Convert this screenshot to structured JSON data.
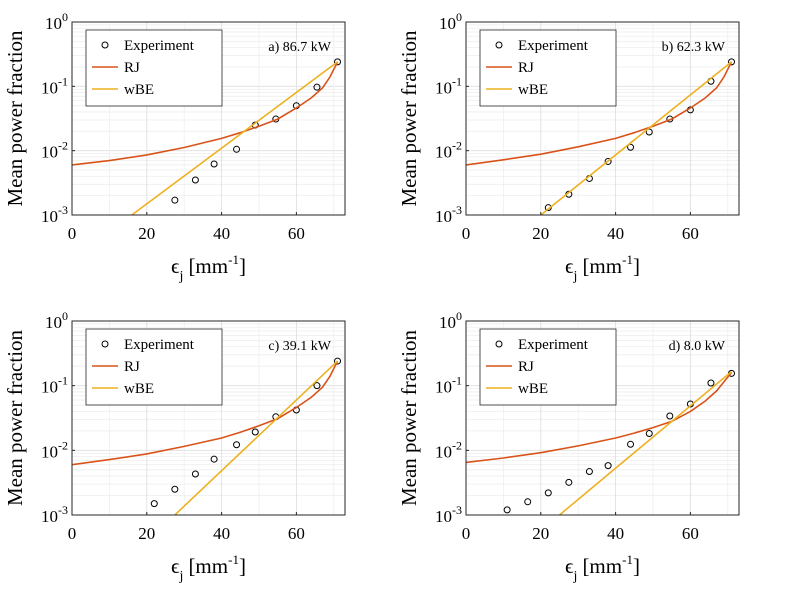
{
  "chart_data": [
    {
      "type": "line",
      "title": "a) 86.7 kW",
      "xlabel_symbol": "ϵ",
      "xlabel_sub": "j",
      "xlabel_unit": "[mm",
      "xlabel_unit_exp": "-1",
      "xlabel_unit_close": "]",
      "ylabel": "Mean power fraction",
      "xlim": [
        0,
        73
      ],
      "ylim": [
        0.001,
        1
      ],
      "yscale": "log",
      "grid": true,
      "legend_position": "top-left",
      "x_ticks": [
        "0",
        "20",
        "40",
        "60"
      ],
      "y_ticks": [
        {
          "base": "10",
          "exp": "0"
        },
        {
          "base": "10",
          "exp": "-1"
        },
        {
          "base": "10",
          "exp": "-2"
        },
        {
          "base": "10",
          "exp": "-3"
        }
      ],
      "series": [
        {
          "name": "Experiment",
          "kind": "scatter",
          "color": "#000000",
          "x": [
            27.5,
            33,
            38,
            44,
            49,
            54.5,
            60,
            65.5,
            71
          ],
          "y": [
            0.0017,
            0.0035,
            0.0062,
            0.0105,
            0.025,
            0.031,
            0.05,
            0.097,
            0.24
          ]
        },
        {
          "name": "RJ",
          "kind": "line",
          "color": "#D95319",
          "x": [
            0,
            10,
            20,
            30,
            40,
            45,
            50,
            55,
            60,
            64,
            67,
            69,
            71
          ],
          "y": [
            0.006,
            0.007,
            0.0086,
            0.0112,
            0.0155,
            0.019,
            0.024,
            0.031,
            0.046,
            0.066,
            0.095,
            0.14,
            0.24
          ]
        },
        {
          "name": "wBE",
          "kind": "line",
          "color": "#EDB120",
          "x": [
            16,
            71
          ],
          "y": [
            0.001,
            0.24
          ]
        }
      ]
    },
    {
      "type": "line",
      "title": "b) 62.3 kW",
      "xlabel_symbol": "ϵ",
      "xlabel_sub": "j",
      "xlabel_unit": "[mm",
      "xlabel_unit_exp": "-1",
      "xlabel_unit_close": "]",
      "ylabel": "Mean power fraction",
      "xlim": [
        0,
        73
      ],
      "ylim": [
        0.001,
        1
      ],
      "yscale": "log",
      "grid": true,
      "legend_position": "top-left",
      "x_ticks": [
        "0",
        "20",
        "40",
        "60"
      ],
      "y_ticks": [
        {
          "base": "10",
          "exp": "0"
        },
        {
          "base": "10",
          "exp": "-1"
        },
        {
          "base": "10",
          "exp": "-2"
        },
        {
          "base": "10",
          "exp": "-3"
        }
      ],
      "series": [
        {
          "name": "Experiment",
          "kind": "scatter",
          "color": "#000000",
          "x": [
            22,
            27.5,
            33,
            38,
            44,
            49,
            54.5,
            60,
            65.5,
            71
          ],
          "y": [
            0.0013,
            0.0021,
            0.0037,
            0.0068,
            0.0113,
            0.0195,
            0.031,
            0.043,
            0.12,
            0.24
          ]
        },
        {
          "name": "RJ",
          "kind": "line",
          "color": "#D95319",
          "x": [
            0,
            10,
            20,
            30,
            40,
            45,
            50,
            55,
            60,
            64,
            67,
            69,
            71
          ],
          "y": [
            0.006,
            0.0072,
            0.0088,
            0.0115,
            0.0155,
            0.019,
            0.024,
            0.031,
            0.046,
            0.066,
            0.095,
            0.14,
            0.24
          ]
        },
        {
          "name": "wBE",
          "kind": "line",
          "color": "#EDB120",
          "x": [
            20,
            71
          ],
          "y": [
            0.001,
            0.24
          ]
        }
      ]
    },
    {
      "type": "line",
      "title": "c) 39.1 kW",
      "xlabel_symbol": "ϵ",
      "xlabel_sub": "j",
      "xlabel_unit": "[mm",
      "xlabel_unit_exp": "-1",
      "xlabel_unit_close": "]",
      "ylabel": "Mean power fraction",
      "xlim": [
        0,
        73
      ],
      "ylim": [
        0.001,
        1
      ],
      "yscale": "log",
      "grid": true,
      "legend_position": "top-left",
      "x_ticks": [
        "0",
        "20",
        "40",
        "60"
      ],
      "y_ticks": [
        {
          "base": "10",
          "exp": "0"
        },
        {
          "base": "10",
          "exp": "-1"
        },
        {
          "base": "10",
          "exp": "-2"
        },
        {
          "base": "10",
          "exp": "-3"
        }
      ],
      "series": [
        {
          "name": "Experiment",
          "kind": "scatter",
          "color": "#000000",
          "x": [
            22,
            27.5,
            33,
            38,
            44,
            49,
            54.5,
            60,
            65.5,
            71
          ],
          "y": [
            0.0015,
            0.0025,
            0.0043,
            0.0073,
            0.0122,
            0.0192,
            0.033,
            0.042,
            0.1,
            0.24
          ]
        },
        {
          "name": "RJ",
          "kind": "line",
          "color": "#D95319",
          "x": [
            0,
            10,
            20,
            30,
            40,
            45,
            50,
            55,
            60,
            64,
            67,
            69,
            71
          ],
          "y": [
            0.006,
            0.0072,
            0.0088,
            0.0115,
            0.0155,
            0.019,
            0.024,
            0.031,
            0.046,
            0.066,
            0.095,
            0.14,
            0.24
          ]
        },
        {
          "name": "wBE",
          "kind": "line",
          "color": "#EDB120",
          "x": [
            27.5,
            71
          ],
          "y": [
            0.001,
            0.24
          ]
        }
      ]
    },
    {
      "type": "line",
      "title": "d) 8.0 kW",
      "xlabel_symbol": "ϵ",
      "xlabel_sub": "j",
      "xlabel_unit": "[mm",
      "xlabel_unit_exp": "-1",
      "xlabel_unit_close": "]",
      "ylabel": "Mean power fraction",
      "xlim": [
        0,
        73
      ],
      "ylim": [
        0.001,
        1
      ],
      "yscale": "log",
      "grid": true,
      "legend_position": "top-left",
      "x_ticks": [
        "0",
        "20",
        "40",
        "60"
      ],
      "y_ticks": [
        {
          "base": "10",
          "exp": "0"
        },
        {
          "base": "10",
          "exp": "-1"
        },
        {
          "base": "10",
          "exp": "-2"
        },
        {
          "base": "10",
          "exp": "-3"
        }
      ],
      "series": [
        {
          "name": "Experiment",
          "kind": "scatter",
          "color": "#000000",
          "x": [
            11,
            16.5,
            22,
            27.5,
            33,
            38,
            44,
            49,
            54.5,
            60,
            65.5,
            71
          ],
          "y": [
            0.0012,
            0.0016,
            0.0022,
            0.0032,
            0.0047,
            0.0058,
            0.0124,
            0.0182,
            0.034,
            0.052,
            0.11,
            0.155
          ]
        },
        {
          "name": "RJ",
          "kind": "line",
          "color": "#D95319",
          "x": [
            0,
            10,
            20,
            30,
            40,
            45,
            50,
            55,
            60,
            64,
            67,
            69,
            71
          ],
          "y": [
            0.0065,
            0.0076,
            0.0092,
            0.0117,
            0.0155,
            0.0185,
            0.0225,
            0.028,
            0.04,
            0.058,
            0.083,
            0.115,
            0.16
          ]
        },
        {
          "name": "wBE",
          "kind": "line",
          "color": "#EDB120",
          "x": [
            25,
            71
          ],
          "y": [
            0.001,
            0.165
          ]
        }
      ]
    }
  ]
}
